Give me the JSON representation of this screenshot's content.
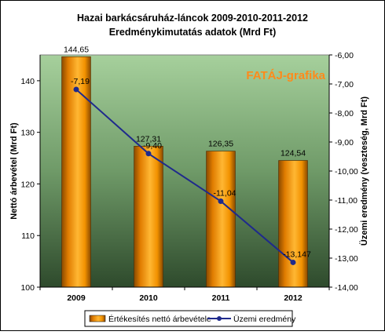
{
  "chart_data": {
    "type": "bar",
    "title_line1": "Hazai barkácsáruház-láncok 2009-2010-2011-2012",
    "title_line2": "Eredménykimutatás adatok (Mrd Ft)",
    "watermark": "FATÁJ-grafika",
    "categories": [
      "2009",
      "2010",
      "2011",
      "2012"
    ],
    "ylabel_left": "Nettó árbevétel (Mrd Ft)",
    "ylabel_right": "Üzemi eredmény (veszteség, Mrd Ft)",
    "y_left": {
      "min": 100,
      "max": 145,
      "ticks": [
        "100",
        "110",
        "120",
        "130",
        "140"
      ]
    },
    "y_right": {
      "min": -14,
      "max": -6,
      "ticks": [
        "-6,00",
        "-7,00",
        "-8,00",
        "-9,00",
        "-10,00",
        "-11,00",
        "-12,00",
        "-13,00",
        "-14,00"
      ]
    },
    "series": [
      {
        "name": "Értékesítés nettó árbevétele",
        "kind": "bar",
        "axis": "left",
        "values": [
          144.65,
          127.31,
          126.35,
          124.54
        ],
        "labels": [
          "144,65",
          "127,31",
          "126,35",
          "124,54"
        ],
        "color": "#ff9900"
      },
      {
        "name": "Üzemi eredmény",
        "kind": "line",
        "axis": "right",
        "values": [
          -7.19,
          -9.4,
          -11.04,
          -13.147
        ],
        "labels": [
          "-7,19",
          "-9,40",
          "-11,04",
          "-13,147"
        ],
        "color": "#1f2a8c"
      }
    ],
    "legend": {
      "position": "bottom"
    }
  }
}
